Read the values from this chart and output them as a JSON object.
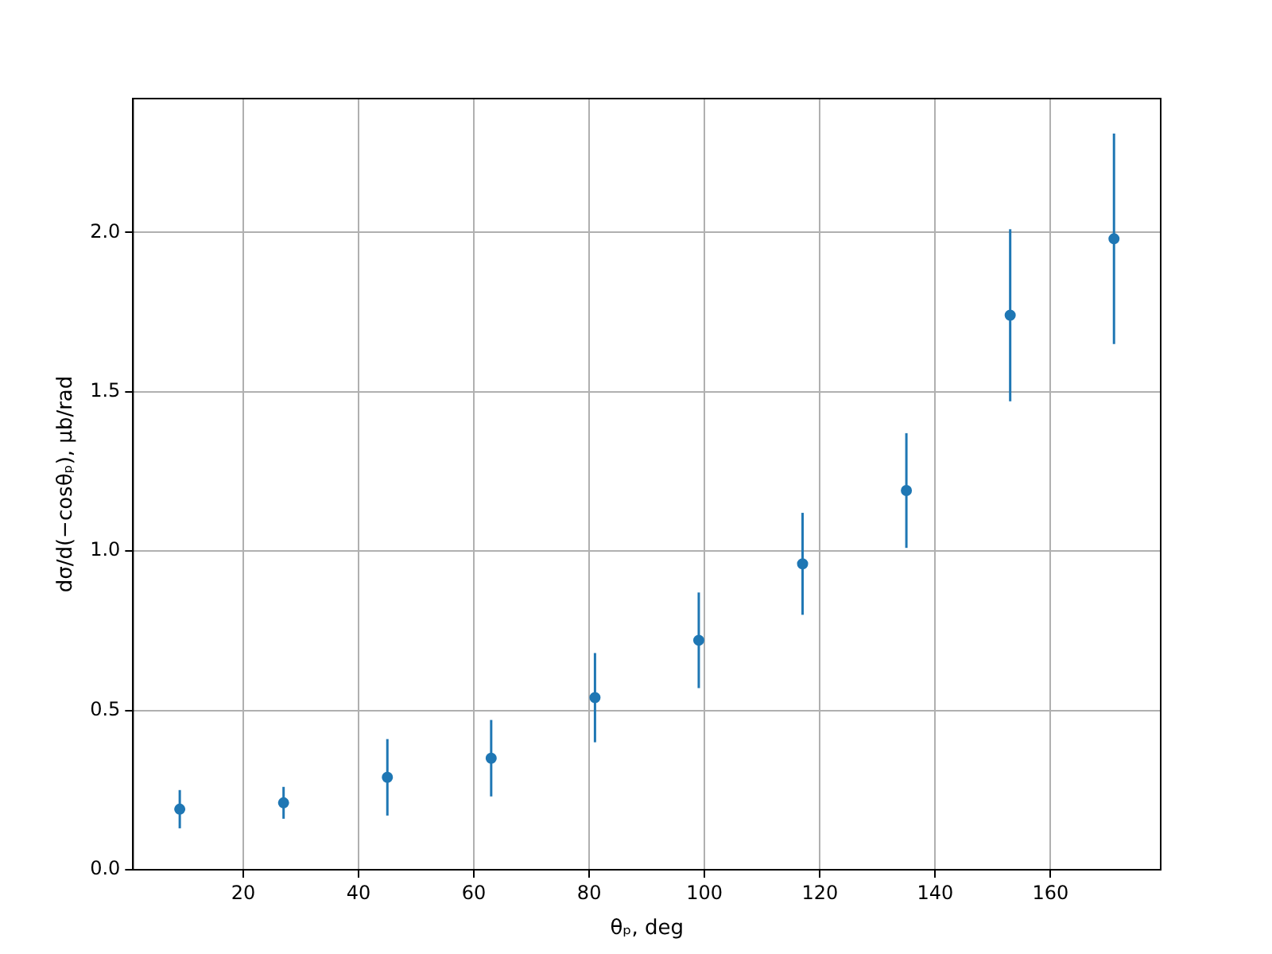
{
  "chart_data": {
    "type": "scatter",
    "xlabel": "θₚ, deg",
    "ylabel": "dσ/d(−cosθₚ), μb/rad",
    "x": [
      9,
      27,
      45,
      63,
      81,
      99,
      117,
      135,
      153,
      171
    ],
    "series": [
      {
        "color": "#1f77b4",
        "values": [
          0.19,
          0.21,
          0.29,
          0.35,
          0.54,
          0.72,
          0.96,
          1.19,
          1.74,
          1.98
        ],
        "errors": [
          0.06,
          0.05,
          0.12,
          0.12,
          0.14,
          0.15,
          0.16,
          0.18,
          0.27,
          0.33
        ]
      }
    ],
    "xlim": [
      0.9,
      179.1
    ],
    "xticks": [
      20,
      40,
      60,
      80,
      100,
      120,
      140,
      160
    ],
    "ylim": [
      0,
      2.42
    ],
    "yticks": [
      {
        "value": 0,
        "label": "0.0"
      },
      {
        "value": 0.5,
        "label": "0.5"
      },
      {
        "value": 1,
        "label": "1.0"
      },
      {
        "value": 1.5,
        "label": "1.5"
      },
      {
        "value": 2,
        "label": "2.0"
      }
    ],
    "grid": true,
    "marker": "circle",
    "legend": false
  }
}
